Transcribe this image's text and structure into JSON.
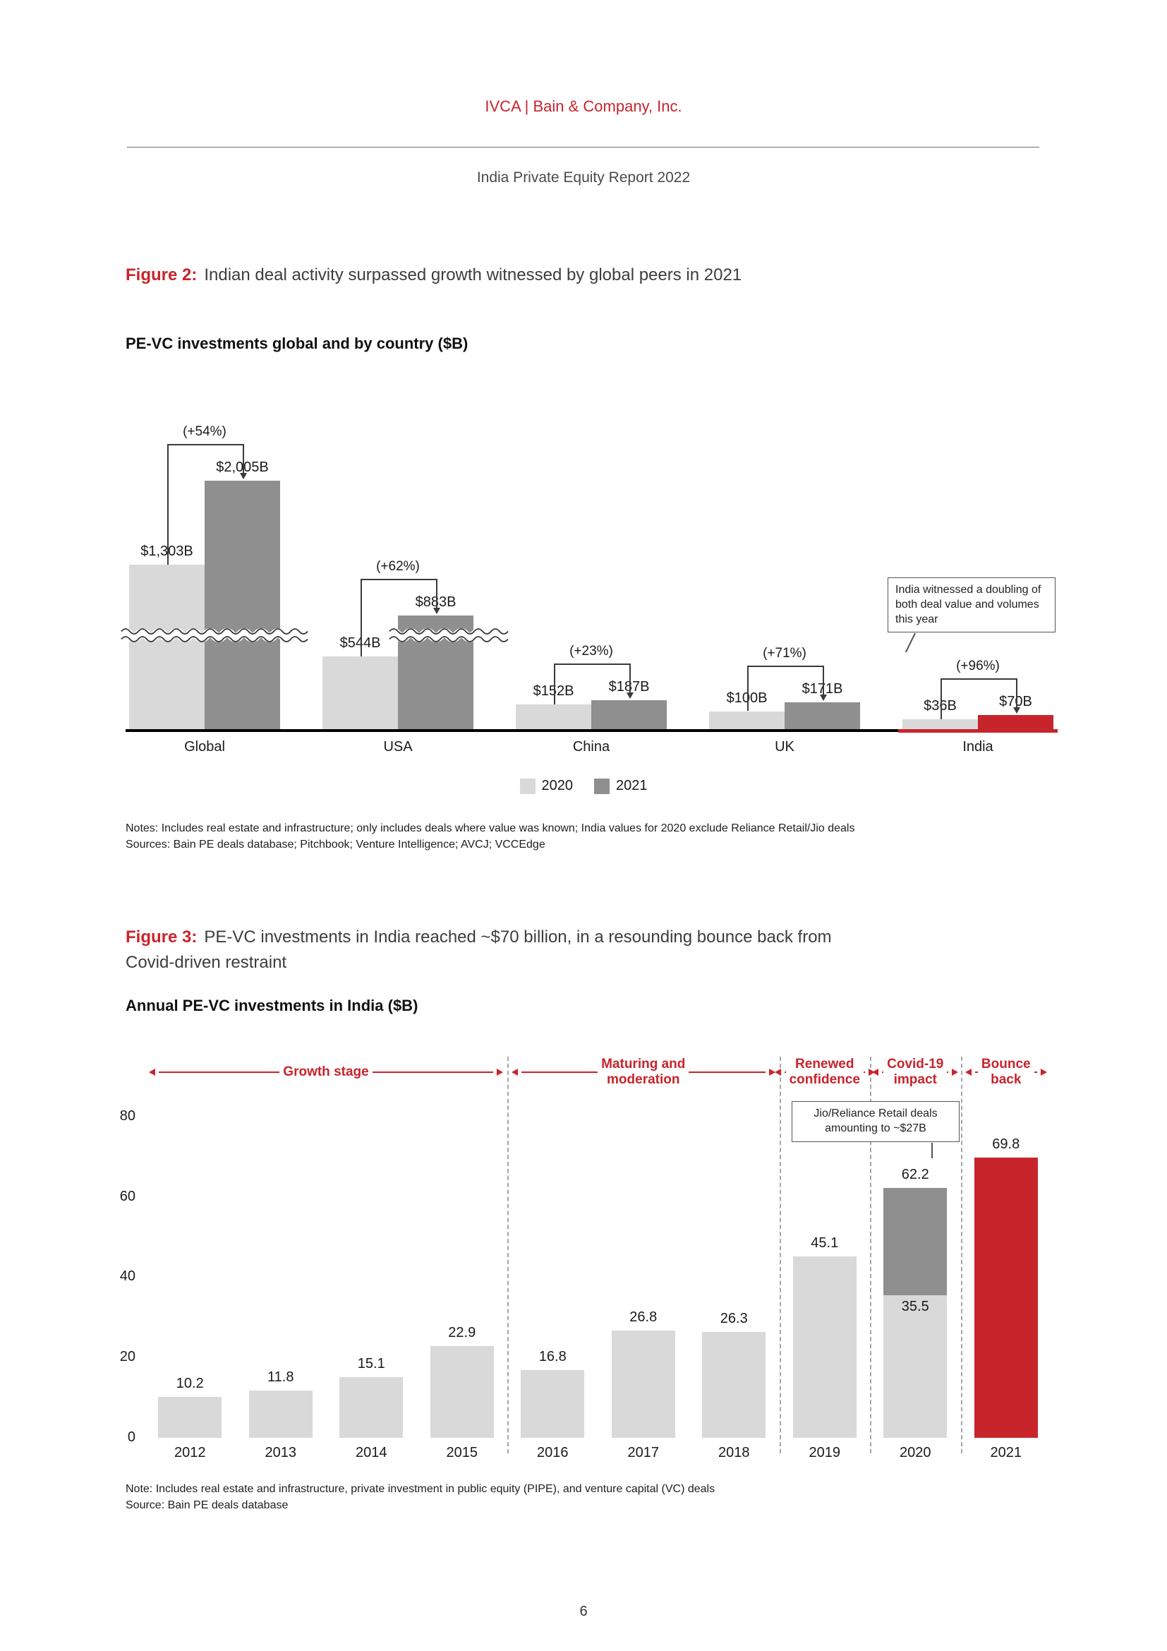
{
  "page": {
    "brand": "IVCA | Bain & Company, Inc.",
    "report_title": "India Private Equity Report 2022",
    "page_number": "6"
  },
  "colors": {
    "accent": "#c8242c",
    "bar_2020": "#d9d9d9",
    "bar_2021": "#8f8f8f",
    "axis": "#000000"
  },
  "figure2": {
    "label": "Figure 2:",
    "title": "Indian deal activity surpassed growth witnessed by global peers in 2021",
    "subtitle": "PE-VC investments global and by country ($B)",
    "callout": "India witnessed a doubling of both deal value and volumes this year",
    "notes_line1": "Notes: Includes real estate and infrastructure; only includes deals where value was known; India values for 2020 exclude Reliance Retail/Jio deals",
    "notes_line2": "Sources: Bain PE deals database; Pitchbook; Venture Intelligence; AVCJ; VCCEdge"
  },
  "figure3": {
    "label": "Figure 3:",
    "title_line1": "PE-VC investments in India reached ~$70 billion, in a resounding bounce back from",
    "title_line2": "Covid-driven restraint",
    "subtitle": "Annual PE-VC investments in India ($B)",
    "callout": "Jio/Reliance Retail deals amounting to ~$27B",
    "notes_line1": "Note: Includes real estate and infrastructure, private investment in public equity (PIPE), and venture capital (VC) deals",
    "notes_line2": "Source: Bain PE deals database"
  },
  "chart_data": [
    {
      "type": "bar",
      "title": "PE-VC investments global and by country ($B)",
      "categories": [
        "Global",
        "USA",
        "China",
        "UK",
        "India"
      ],
      "series": [
        {
          "name": "2020",
          "values": [
            1303,
            544,
            152,
            100,
            36
          ],
          "labels": [
            "$1,303B",
            "$544B",
            "$152B",
            "$100B",
            "$36B"
          ]
        },
        {
          "name": "2021",
          "values": [
            2005,
            883,
            187,
            171,
            70
          ],
          "labels": [
            "$2,005B",
            "$883B",
            "$187B",
            "$171B",
            "$70B"
          ]
        }
      ],
      "growth_labels": [
        "(+54%)",
        "(+62%)",
        "(+23%)",
        "(+71%)",
        "(+96%)"
      ],
      "axis_break": true,
      "highlight_category": "India",
      "legend_position": "bottom"
    },
    {
      "type": "bar",
      "title": "Annual PE-VC investments in India ($B)",
      "categories": [
        "2012",
        "2013",
        "2014",
        "2015",
        "2016",
        "2017",
        "2018",
        "2019",
        "2020",
        "2021"
      ],
      "values": [
        10.2,
        11.8,
        15.1,
        22.9,
        16.8,
        26.8,
        26.3,
        45.1,
        62.2,
        69.8
      ],
      "value_labels": [
        "10.2",
        "11.8",
        "15.1",
        "22.9",
        "16.8",
        "26.8",
        "26.3",
        "45.1",
        "62.2",
        "69.8"
      ],
      "stacked_bar": {
        "category": "2020",
        "base_value": 35.5,
        "base_label": "35.5",
        "top_value": 26.7,
        "top_note": "Jio/Reliance Retail deals amounting to ~$27B"
      },
      "highlight_category": "2021",
      "ylim": [
        0,
        80
      ],
      "yticks": [
        0,
        20,
        40,
        60,
        80
      ],
      "separators_after_categories": [
        "2015",
        "2018",
        "2019",
        "2020"
      ],
      "phases": [
        {
          "label": "Growth stage",
          "from": "2012",
          "to": "2015"
        },
        {
          "label": "Maturing and\nmoderation",
          "from": "2016",
          "to": "2018"
        },
        {
          "label": "Renewed\nconfidence",
          "from": "2019",
          "to": "2019"
        },
        {
          "label": "Covid-19\nimpact",
          "from": "2020",
          "to": "2020"
        },
        {
          "label": "Bounce\nback",
          "from": "2021",
          "to": "2021"
        }
      ]
    }
  ]
}
